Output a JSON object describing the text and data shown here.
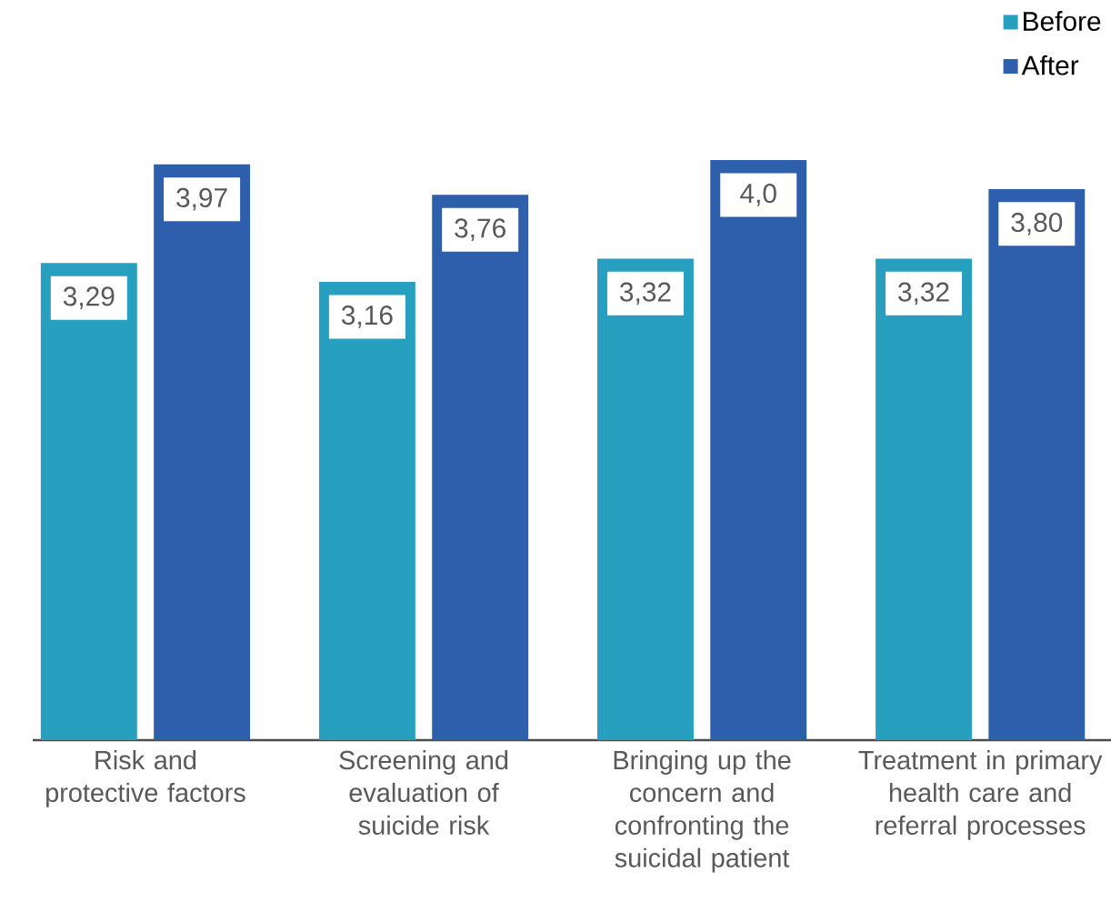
{
  "chart_data": {
    "type": "bar",
    "categories": [
      "Risk and protective factors",
      "Screening and evaluation of suicide risk",
      "Bringing up the concern and confronting the suicidal patient",
      "Treatment in primary health care and referral processes"
    ],
    "series": [
      {
        "name": "Before",
        "color": "#27a0c0",
        "values": [
          3.29,
          3.16,
          3.32,
          3.32
        ],
        "value_labels": [
          "3,29",
          "3,16",
          "3,32",
          "3,32"
        ]
      },
      {
        "name": "After",
        "color": "#2e5fac",
        "values": [
          3.97,
          3.76,
          4.0,
          3.8
        ],
        "value_labels": [
          "3,97",
          "3,76",
          "4,0",
          "3,80"
        ]
      }
    ],
    "ylim": [
      0,
      4.0
    ],
    "tick_labels": "x",
    "legend": "top right"
  }
}
